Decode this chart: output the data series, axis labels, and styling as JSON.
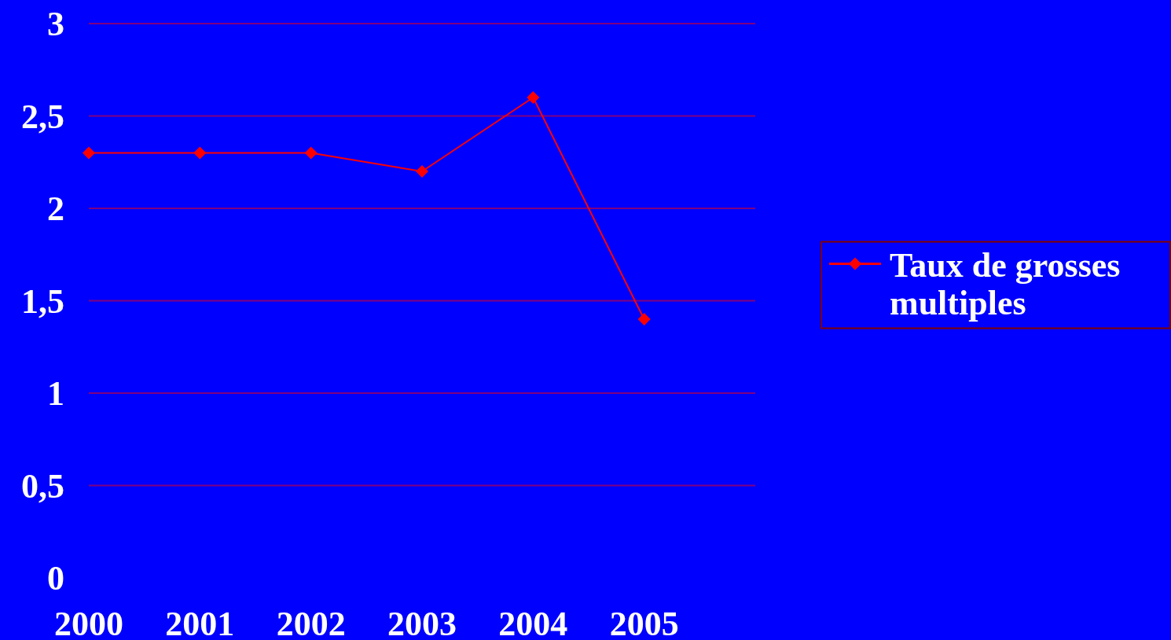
{
  "chart_data": {
    "type": "line",
    "categories": [
      "2000",
      "2001",
      "2002",
      "2003",
      "2004",
      "2005"
    ],
    "series": [
      {
        "name": "Taux de grosses multiples",
        "color": "#ff0000",
        "values": [
          2.3,
          2.3,
          2.3,
          2.2,
          2.6,
          1.4
        ]
      }
    ],
    "ylim": [
      0,
      3
    ],
    "yticks": [
      0,
      {
        "value": 0.5,
        "label": "0,5"
      },
      1,
      {
        "value": 1.5,
        "label": "1,5"
      },
      2,
      {
        "value": 2.5,
        "label": "2,5"
      },
      3
    ],
    "grid": "y",
    "legend": "right",
    "marker": "diamond",
    "line_style": "solid"
  }
}
